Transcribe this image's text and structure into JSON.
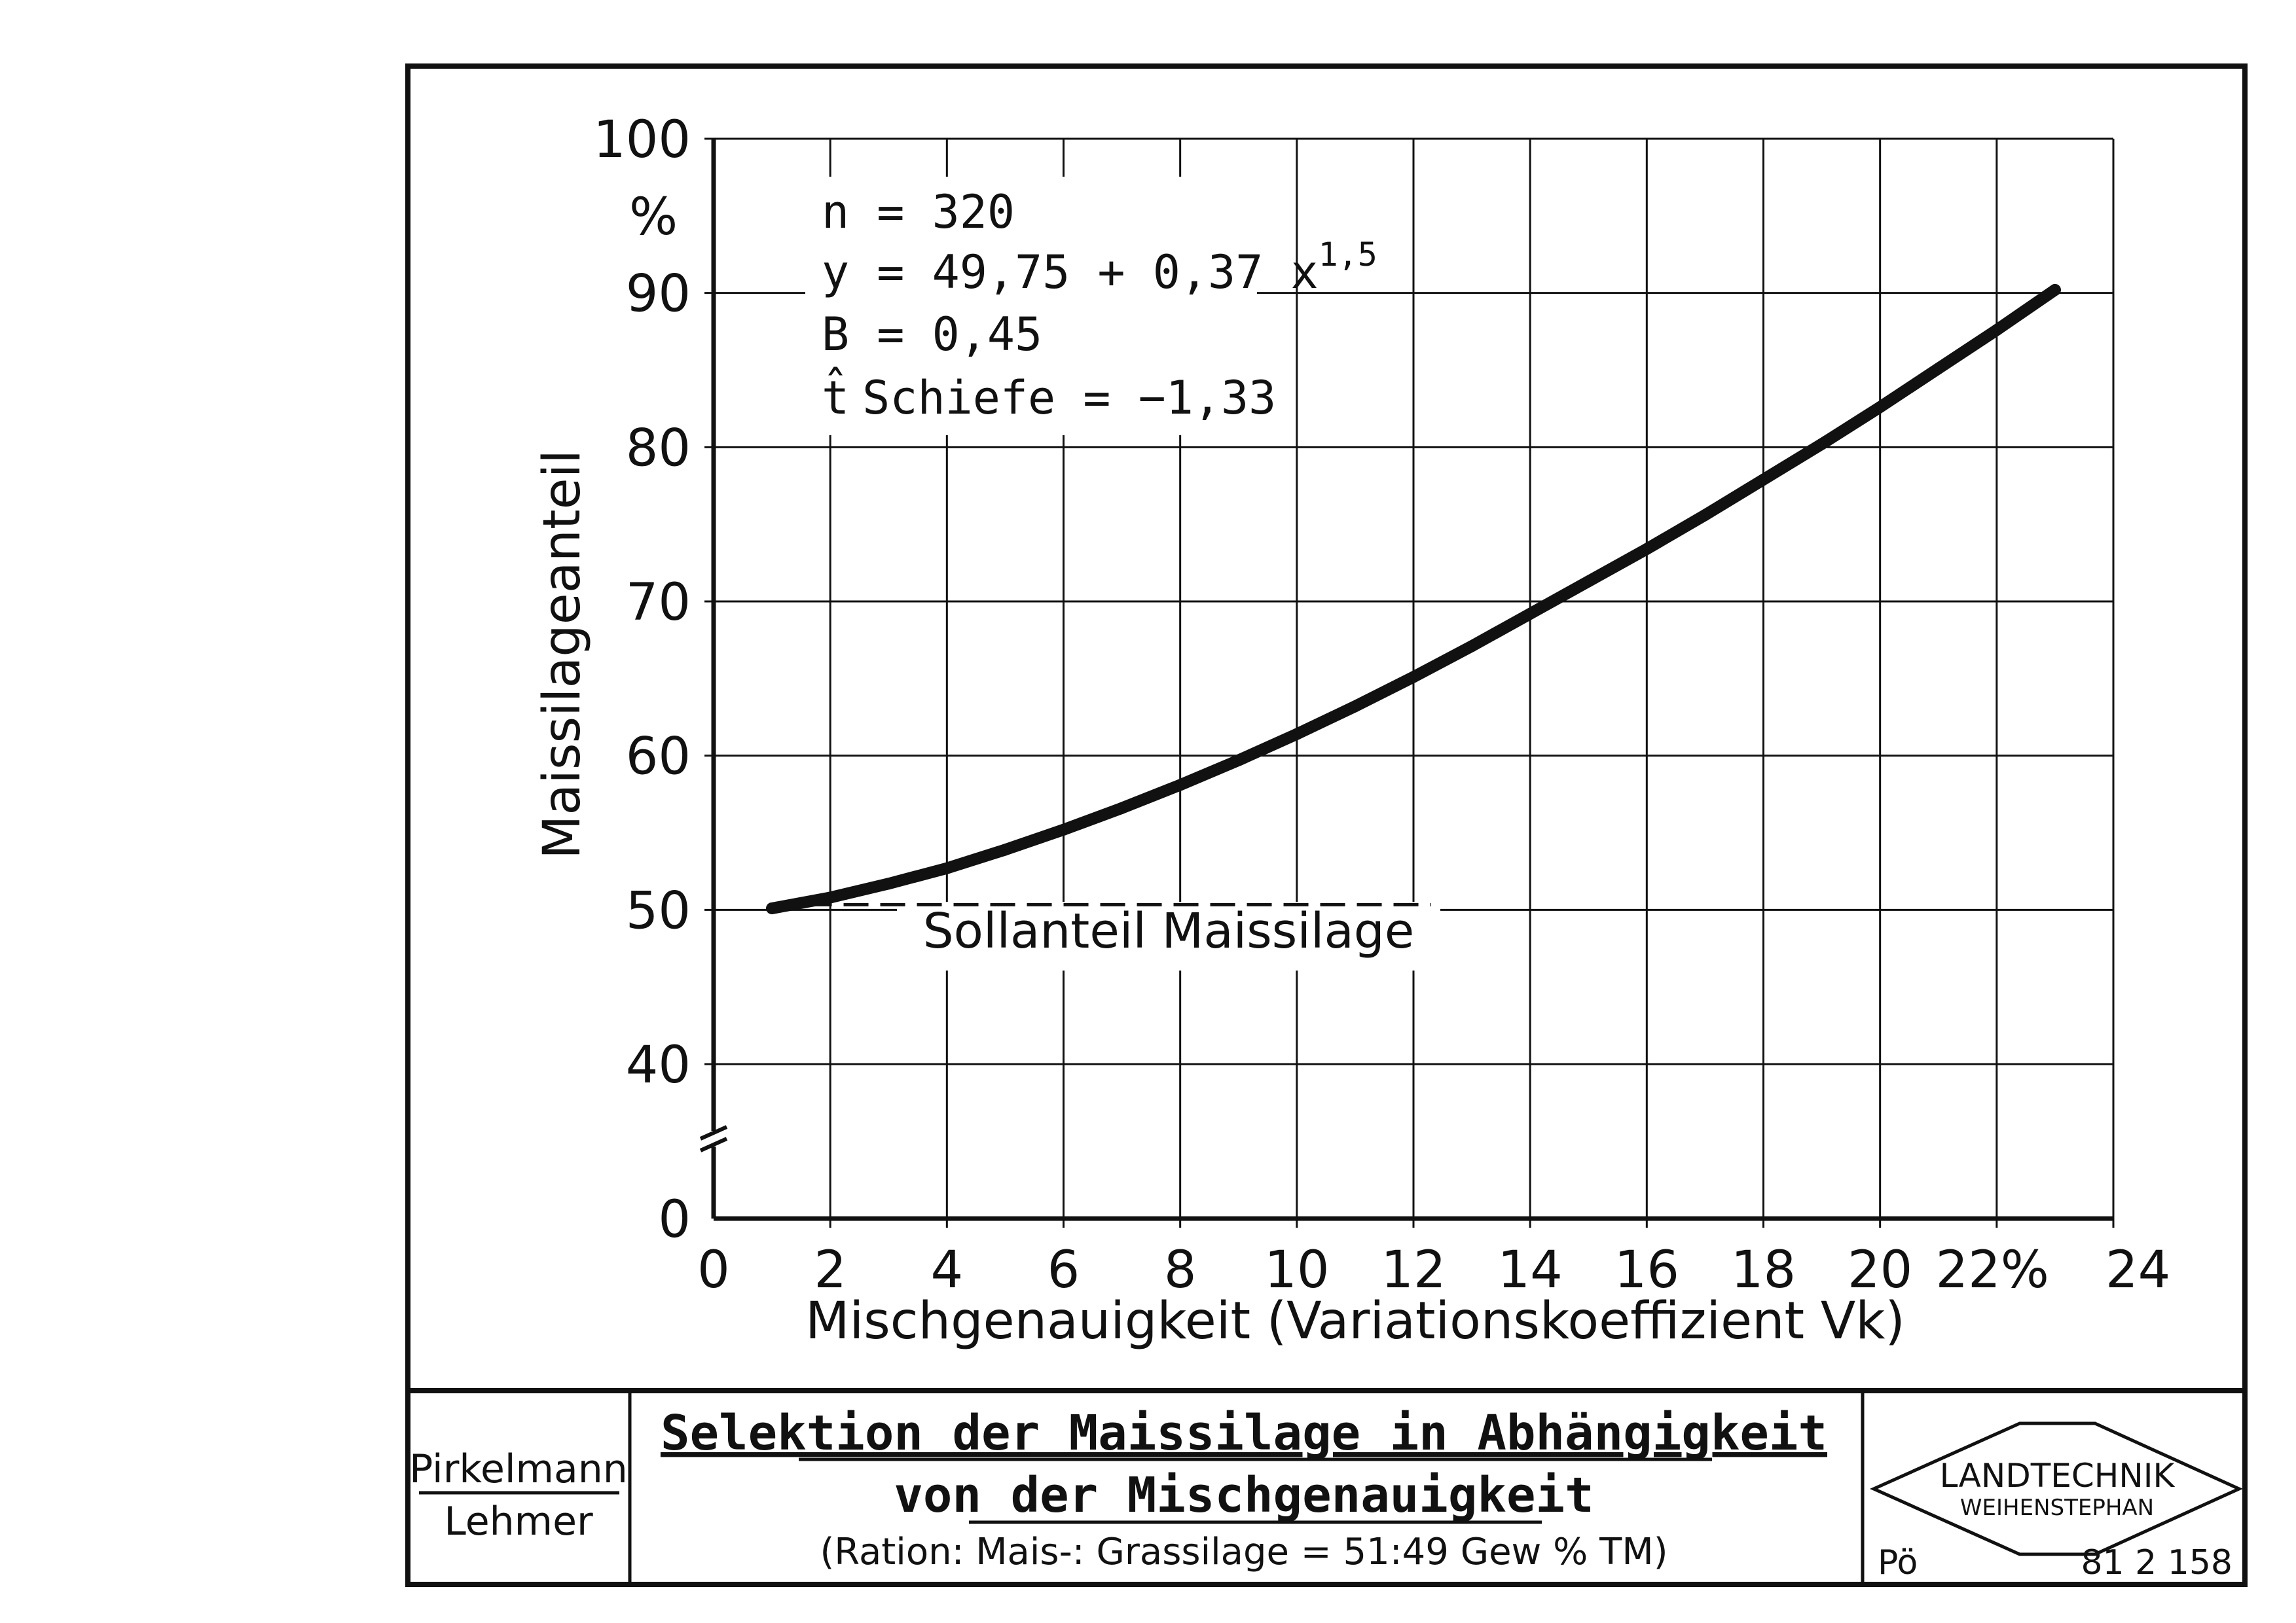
{
  "chart_data": {
    "type": "line",
    "ylabel": "Maissilageanteil",
    "y_unit": "%",
    "xlabel": "Mischgenauigkeit (Variationskoeffizient Vk)",
    "x_unit_label": "22%",
    "xlim": [
      0,
      24
    ],
    "ylim": [
      0,
      100
    ],
    "y_axis_break": true,
    "y_ticks": [
      0,
      40,
      50,
      60,
      70,
      80,
      90,
      100
    ],
    "x_ticks": [
      0,
      2,
      4,
      6,
      8,
      10,
      12,
      14,
      16,
      18,
      20,
      22,
      24
    ],
    "grid": true,
    "stats": {
      "n": "n = 320",
      "equation_base": "y = 49,75 + 0,37 x",
      "equation_exp": "1,5",
      "b": "B = 0,45",
      "t_symbol": "t̂",
      "skew": "Schiefe = −1,33"
    },
    "series": [
      {
        "x": [
          1,
          2,
          3,
          4,
          5,
          6,
          7,
          8,
          9,
          10,
          11,
          12,
          13,
          14,
          15,
          16,
          17,
          18,
          19,
          20,
          21,
          22,
          23
        ],
        "values": [
          50.1,
          50.8,
          51.7,
          52.7,
          53.9,
          55.2,
          56.6,
          58.1,
          59.7,
          61.4,
          63.2,
          65.1,
          67.1,
          69.2,
          71.3,
          73.4,
          75.6,
          77.9,
          80.2,
          82.6,
          85.1,
          87.6,
          90.2
        ]
      }
    ],
    "reference_line": {
      "y": 50,
      "label": "Sollanteil Maissilage"
    }
  },
  "title_block": {
    "authors": [
      "Pirkelmann",
      "Lehmer"
    ],
    "title_line1": "Selektion der Maissilage in Abhängigkeit",
    "title_line2": "von der Mischgenauigkeit",
    "subtitle": "(Ration: Mais-: Grassilage = 51:49 Gew % TM)",
    "logo_top": "LANDTECHNIK",
    "logo_bottom": "WEIHENSTEPHAN",
    "drawer": "Pö",
    "drawing_number": "81 2 158"
  }
}
